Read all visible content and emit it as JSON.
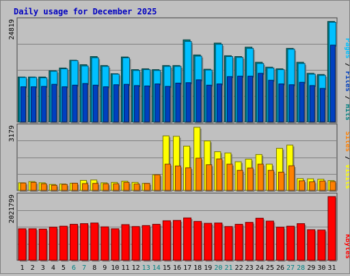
{
  "chart_data": {
    "type": "bar",
    "title": "Daily usage for December 2025",
    "categories": [
      "1",
      "2",
      "3",
      "4",
      "5",
      "6",
      "7",
      "8",
      "9",
      "10",
      "11",
      "12",
      "13",
      "14",
      "15",
      "16",
      "17",
      "18",
      "19",
      "20",
      "21",
      "22",
      "23",
      "24",
      "25",
      "26",
      "27",
      "28",
      "29",
      "30",
      "31"
    ],
    "weekend_days": [
      6,
      7,
      13,
      14,
      20,
      21,
      27,
      28
    ],
    "panels": [
      {
        "name": "hits-files-pages",
        "ymax_label": "24819",
        "ymax": 24819,
        "side_label": [
          "Pages",
          " / ",
          "Files",
          " / ",
          "Hits"
        ],
        "side_colors": [
          "#00c0ff",
          "#000000",
          "#0040c0",
          "#000000",
          "#008080"
        ],
        "series": [
          {
            "name": "Hits",
            "color": "#008080",
            "values": [
              11000,
              11000,
              11000,
              12500,
              13200,
              15100,
              14000,
              16000,
              13800,
              11800,
              15900,
              12800,
              13000,
              12800,
              13800,
              13800,
              20100,
              16400,
              12900,
              19300,
              16200,
              16000,
              18300,
              14600,
              13400,
              13000,
              18000,
              14600,
              11900,
              11600,
              24600
            ]
          },
          {
            "name": "Files",
            "color": "#00c0ff",
            "values": [
              10900,
              10900,
              10800,
              12400,
              13000,
              15000,
              13700,
              15700,
              13600,
              11700,
              15700,
              12600,
              12800,
              12600,
              13600,
              13600,
              19700,
              16100,
              12700,
              19000,
              16000,
              15800,
              18000,
              14300,
              13200,
              12800,
              17800,
              14300,
              11700,
              11400,
              24400
            ]
          },
          {
            "name": "Pages",
            "color": "#0040c0",
            "values": [
              8600,
              8600,
              8700,
              9200,
              8600,
              9000,
              9400,
              9000,
              8600,
              9100,
              9200,
              8900,
              8800,
              9300,
              8700,
              9500,
              9600,
              10300,
              9000,
              9300,
              11100,
              11200,
              11200,
              11900,
              10200,
              9300,
              9100,
              9700,
              8900,
              8200,
              18800
            ]
          }
        ]
      },
      {
        "name": "visits-sites",
        "ymax_label": "3179",
        "ymax": 3179,
        "side_label": [
          "Sites",
          " / ",
          "Visits"
        ],
        "side_colors": [
          "#ff8000",
          "#000000",
          "#ffff00"
        ],
        "series": [
          {
            "name": "Visits",
            "color": "#ffff00",
            "values": [
              380,
              440,
              380,
              300,
              320,
              360,
              500,
              520,
              380,
              400,
              460,
              400,
              350,
              780,
              2720,
              2700,
              2210,
              3150,
              2470,
              1930,
              1870,
              1430,
              1560,
              1790,
              1310,
              2100,
              2260,
              590,
              580,
              560,
              490
            ]
          },
          {
            "name": "Sites",
            "color": "#ff8000",
            "values": [
              370,
              400,
              330,
              260,
              300,
              360,
              340,
              350,
              330,
              330,
              400,
              320,
              350,
              780,
              1310,
              1220,
              1130,
              1610,
              1280,
              1570,
              1310,
              1000,
              1120,
              1310,
              1000,
              910,
              1230,
              480,
              430,
              470,
              440
            ]
          }
        ]
      },
      {
        "name": "kbytes",
        "ymax_label": "2021799",
        "ymax": 2021799,
        "side_label": [
          "KBytes"
        ],
        "side_colors": [
          "#ff0000"
        ],
        "series": [
          {
            "name": "KBytes",
            "color": "#ff0000",
            "values": [
              990000,
              990000,
              980000,
              1040000,
              1070000,
              1130000,
              1150000,
              1170000,
              1050000,
              990000,
              1120000,
              1060000,
              1090000,
              1130000,
              1240000,
              1250000,
              1330000,
              1220000,
              1160000,
              1170000,
              1060000,
              1130000,
              1190000,
              1320000,
              1230000,
              1040000,
              1070000,
              1150000,
              960000,
              950000,
              2000000
            ]
          }
        ]
      }
    ]
  }
}
